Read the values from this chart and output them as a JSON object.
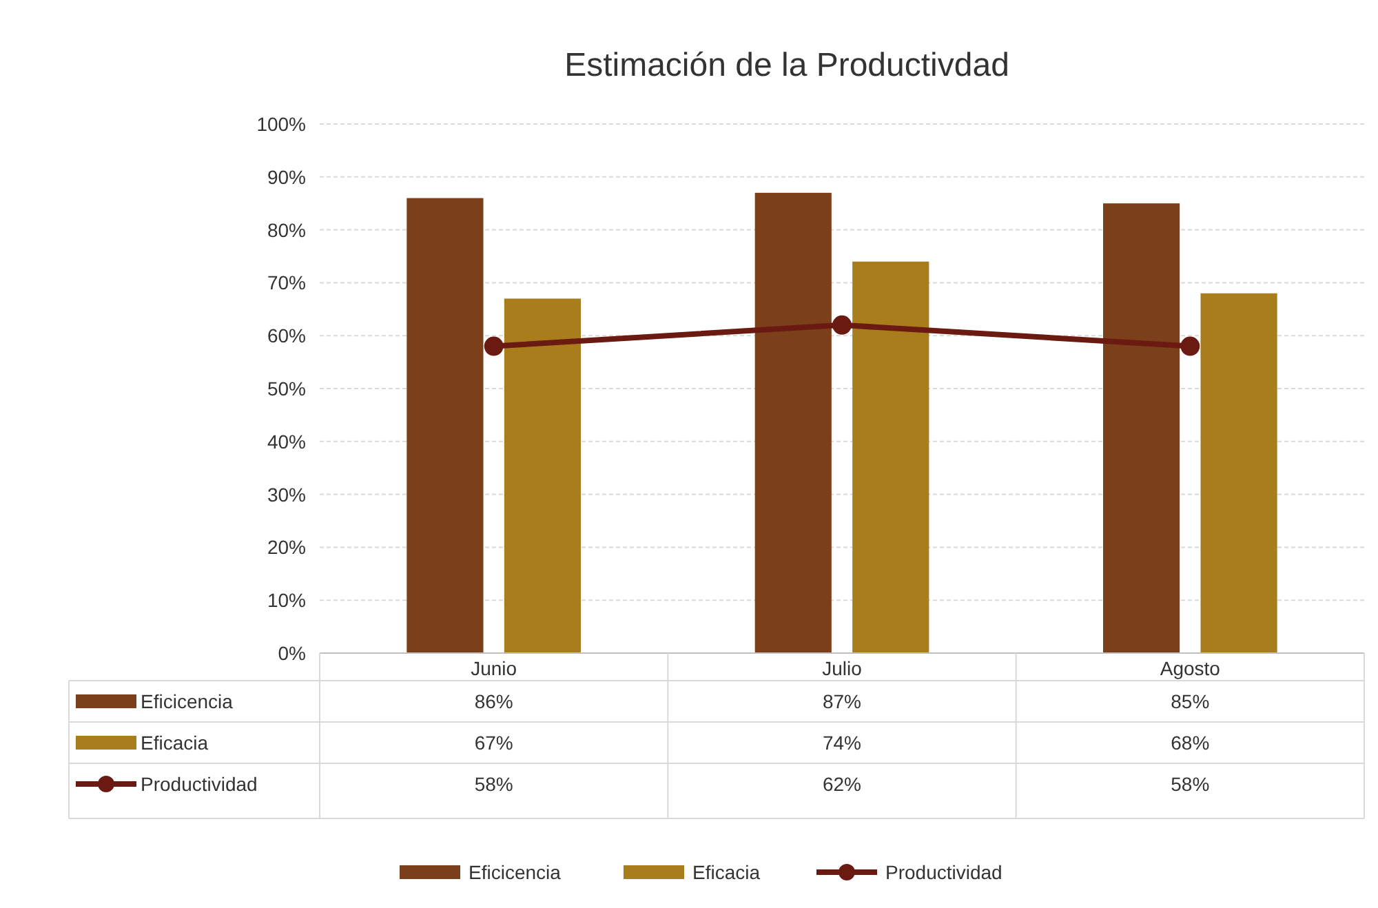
{
  "chart_data": {
    "type": "bar",
    "title": "Estimación de la Productivdad",
    "categories": [
      "Junio",
      "Julio",
      "Agosto"
    ],
    "series": [
      {
        "name": "Eficicencia",
        "color": "#7b3f1a",
        "values": [
          86,
          87,
          85
        ],
        "value_labels": [
          "86%",
          "87%",
          "85%"
        ]
      },
      {
        "name": "Eficacia",
        "color": "#a97d1c",
        "values": [
          67,
          74,
          68
        ],
        "value_labels": [
          "67%",
          "74%",
          "68%"
        ]
      },
      {
        "name": "Productividad",
        "type": "line",
        "color": "#6b1a12",
        "marker": "circle",
        "values": [
          58,
          62,
          58
        ],
        "value_labels": [
          "58%",
          "62%",
          "58%"
        ]
      }
    ],
    "ylim": [
      0,
      100
    ],
    "yticks": [
      {
        "value": 0,
        "label": "0%"
      },
      {
        "value": 10,
        "label": "10%"
      },
      {
        "value": 20,
        "label": "20%"
      },
      {
        "value": 30,
        "label": "30%"
      },
      {
        "value": 40,
        "label": "40%"
      },
      {
        "value": 50,
        "label": "50%"
      },
      {
        "value": 60,
        "label": "60%"
      },
      {
        "value": 70,
        "label": "70%"
      },
      {
        "value": 80,
        "label": "80%"
      },
      {
        "value": 90,
        "label": "90%"
      },
      {
        "value": 100,
        "label": "100%"
      }
    ],
    "grid": "y",
    "legend": "bottom"
  }
}
